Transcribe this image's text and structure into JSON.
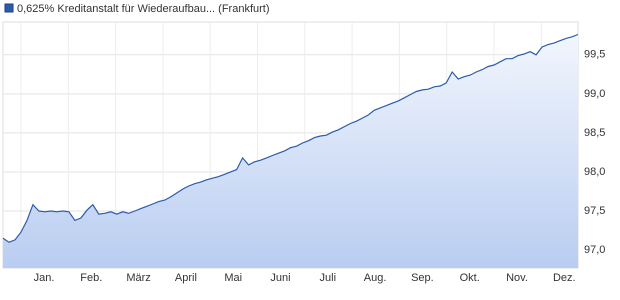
{
  "chart_data": {
    "type": "area",
    "series": [
      {
        "name": "0,625% Kreditanstalt für Wiederaufbau... (Frankfurt)",
        "color": "#2a5caa",
        "values": [
          97.15,
          97.1,
          97.13,
          97.23,
          97.38,
          97.58,
          97.5,
          97.49,
          97.5,
          97.49,
          97.5,
          97.49,
          97.38,
          97.41,
          97.51,
          97.58,
          97.46,
          97.47,
          97.49,
          97.46,
          97.49,
          97.47,
          97.5,
          97.53,
          97.56,
          97.59,
          97.62,
          97.64,
          97.68,
          97.73,
          97.78,
          97.82,
          97.85,
          97.87,
          97.9,
          97.92,
          97.94,
          97.97,
          98.0,
          98.03,
          98.18,
          98.09,
          98.13,
          98.15,
          98.18,
          98.21,
          98.24,
          98.27,
          98.31,
          98.33,
          98.37,
          98.4,
          98.44,
          98.46,
          98.47,
          98.51,
          98.54,
          98.58,
          98.62,
          98.65,
          98.69,
          98.73,
          98.79,
          98.82,
          98.85,
          98.88,
          98.91,
          98.95,
          98.99,
          99.03,
          99.05,
          99.06,
          99.09,
          99.1,
          99.14,
          99.28,
          99.19,
          99.22,
          99.24,
          99.28,
          99.31,
          99.35,
          99.37,
          99.41,
          99.45,
          99.45,
          99.49,
          99.51,
          99.54,
          99.5,
          99.6,
          99.63,
          99.65,
          99.68,
          99.71,
          99.73,
          99.76
        ]
      }
    ],
    "month_labels": [
      "Jan.",
      "Feb.",
      "März",
      "April",
      "Mai",
      "Juni",
      "Juli",
      "Aug.",
      "Sep.",
      "Okt.",
      "Nov.",
      "Dez."
    ],
    "ylim": [
      96.77,
      99.92
    ],
    "yticks": [
      {
        "value": 97.0,
        "label": "97,0"
      },
      {
        "value": 97.5,
        "label": "97,5"
      },
      {
        "value": 98.0,
        "label": "98,0"
      },
      {
        "value": 98.5,
        "label": "98,5"
      },
      {
        "value": 99.0,
        "label": "99,0"
      },
      {
        "value": 99.5,
        "label": "99,5"
      }
    ],
    "grid": true,
    "legend": "top-left"
  }
}
